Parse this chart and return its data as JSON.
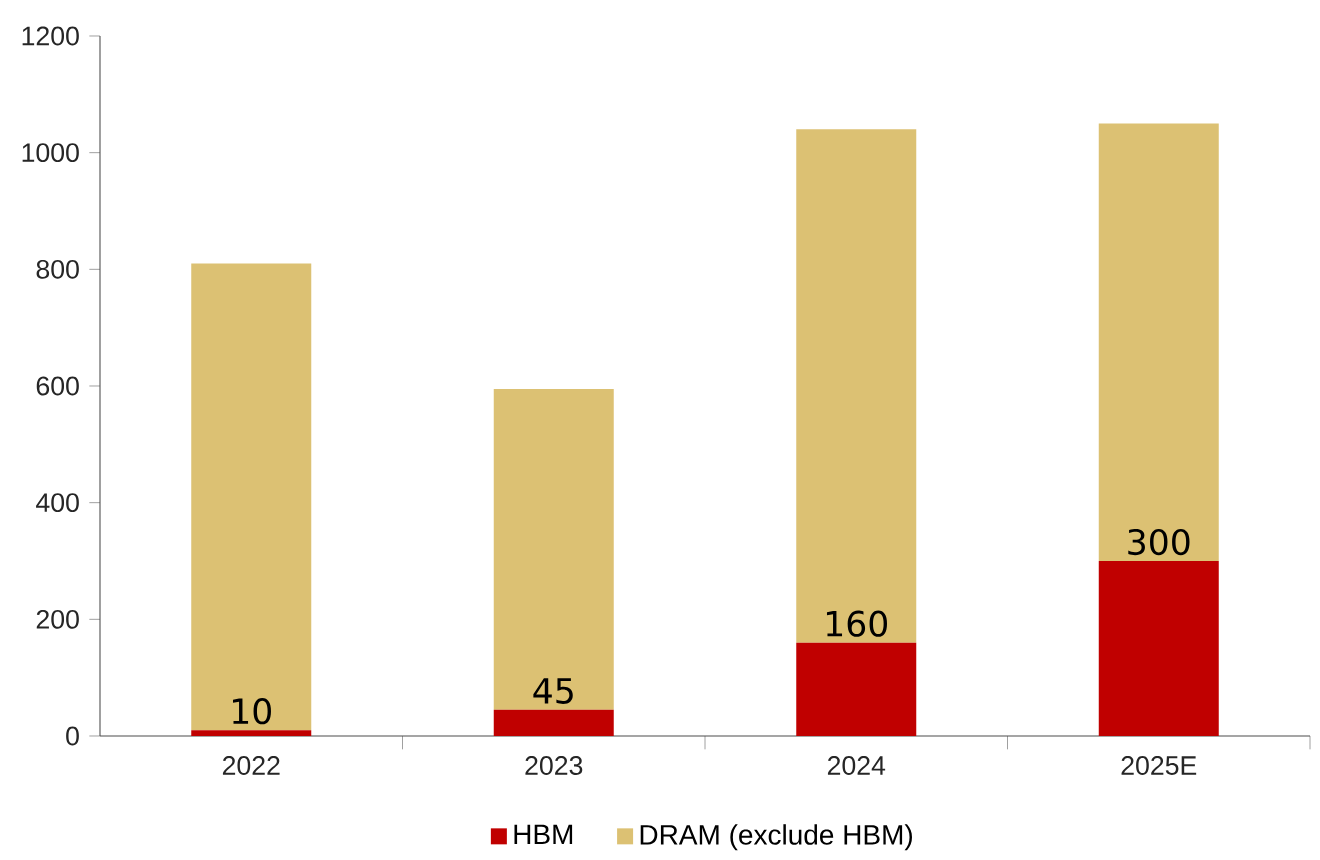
{
  "chart_data": {
    "type": "bar",
    "stacked": true,
    "categories": [
      "2022",
      "2023",
      "2024",
      "2025E"
    ],
    "series": [
      {
        "name": "HBM",
        "color": "#c00000",
        "values": [
          10,
          45,
          160,
          300
        ],
        "value_labels": [
          "10",
          "45",
          "160",
          "300"
        ]
      },
      {
        "name": "DRAM  (exclude HBM)",
        "color": "#dcc173",
        "values": [
          800,
          550,
          880,
          750
        ]
      }
    ],
    "ylim": [
      0,
      1200
    ],
    "yticks": [
      0,
      200,
      400,
      600,
      800,
      1000,
      1200
    ],
    "legend": "bottom"
  }
}
